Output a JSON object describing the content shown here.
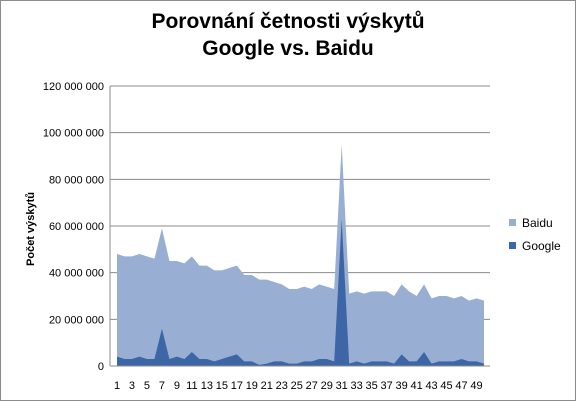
{
  "chart_data": {
    "type": "area",
    "title_lines": [
      "Porovnání četnosti výskytů",
      "Google vs. Baidu"
    ],
    "ylabel": "Počet výskytů",
    "ylim": [
      0,
      120000000
    ],
    "yticks": [
      0,
      20000000,
      40000000,
      60000000,
      80000000,
      100000000,
      120000000
    ],
    "ytick_labels": [
      "0",
      "20 000 000",
      "40 000 000",
      "60 000 000",
      "80 000 000",
      "100 000 000",
      "120 000 000"
    ],
    "x": [
      1,
      2,
      3,
      4,
      5,
      6,
      7,
      8,
      9,
      10,
      11,
      12,
      13,
      14,
      15,
      16,
      17,
      18,
      19,
      20,
      21,
      22,
      23,
      24,
      25,
      26,
      27,
      28,
      29,
      30,
      31,
      32,
      33,
      34,
      35,
      36,
      37,
      38,
      39,
      40,
      41,
      42,
      43,
      44,
      45,
      46,
      47,
      48,
      49,
      50
    ],
    "xtick_labels": [
      "1",
      "3",
      "5",
      "7",
      "9",
      "11",
      "13",
      "15",
      "17",
      "19",
      "21",
      "23",
      "25",
      "27",
      "29",
      "31",
      "33",
      "35",
      "37",
      "39",
      "41",
      "43",
      "45",
      "47",
      "49"
    ],
    "grid": "horizontal",
    "legend": "right",
    "series": [
      {
        "name": "Baidu",
        "color": "#98aed3",
        "values": [
          48000000,
          47000000,
          47000000,
          48000000,
          47000000,
          46000000,
          59000000,
          45000000,
          45000000,
          44000000,
          47000000,
          43000000,
          43000000,
          41000000,
          41000000,
          42000000,
          43000000,
          39000000,
          39000000,
          37000000,
          37000000,
          36000000,
          35000000,
          33000000,
          33000000,
          34000000,
          33000000,
          35000000,
          34000000,
          33000000,
          95000000,
          31000000,
          32000000,
          31000000,
          32000000,
          32000000,
          32000000,
          30000000,
          35000000,
          32000000,
          30000000,
          35000000,
          29000000,
          30000000,
          30000000,
          29000000,
          30000000,
          28000000,
          29000000,
          28000000
        ]
      },
      {
        "name": "Google",
        "color": "#3d66a7",
        "values": [
          4000000,
          3000000,
          3000000,
          4000000,
          3000000,
          3000000,
          16000000,
          3000000,
          4000000,
          3000000,
          6000000,
          3000000,
          3000000,
          2000000,
          3000000,
          4000000,
          5000000,
          2000000,
          2000000,
          500000,
          1000000,
          2000000,
          2000000,
          1000000,
          1000000,
          2000000,
          2000000,
          3000000,
          3000000,
          2000000,
          63000000,
          1000000,
          2000000,
          1000000,
          2000000,
          2000000,
          2000000,
          1000000,
          5000000,
          2000000,
          2000000,
          6000000,
          1000000,
          2000000,
          2000000,
          2000000,
          3000000,
          2000000,
          2000000,
          1000000
        ]
      }
    ]
  }
}
